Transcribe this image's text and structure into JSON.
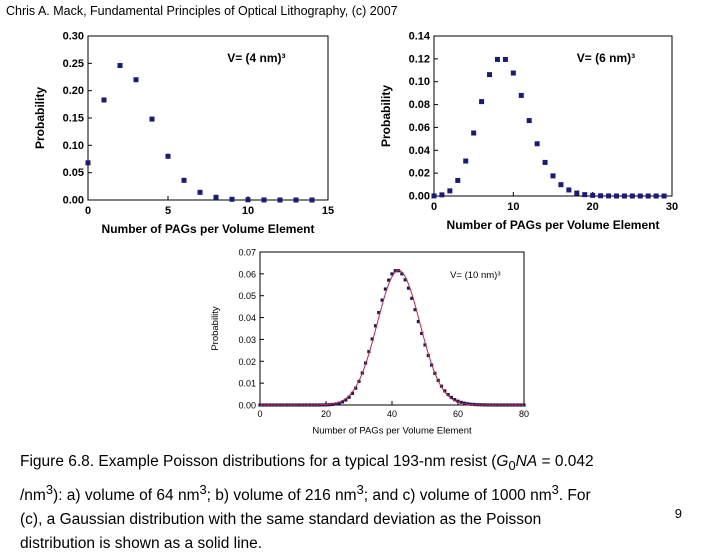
{
  "header": {
    "text": "Chris A. Mack, Fundamental Principles of Optical Lithography, (c) 2007"
  },
  "chart_data": [
    {
      "type": "scatter",
      "title": "V= (4 nm)³",
      "xlabel": "Number of PAGs per Volume Element",
      "ylabel": "Probability",
      "xlim": [
        0,
        15
      ],
      "ylim": [
        0,
        0.3
      ],
      "xticks": [
        "0",
        "5",
        "10",
        "15"
      ],
      "yticks": [
        "0.00",
        "0.05",
        "0.10",
        "0.15",
        "0.20",
        "0.25",
        "0.30"
      ],
      "x": [
        0,
        1,
        2,
        3,
        4,
        5,
        6,
        7,
        8,
        9,
        10,
        11,
        12,
        13,
        14
      ],
      "y": [
        0.068,
        0.183,
        0.246,
        0.22,
        0.148,
        0.08,
        0.036,
        0.014,
        0.005,
        0.0014,
        0.0004,
        0.0001,
        0.0,
        0.0,
        0.0
      ],
      "marker_color": "#1a1a7a"
    },
    {
      "type": "scatter",
      "title": "V= (6 nm)³",
      "xlabel": "Number of PAGs per Volume Element",
      "ylabel": "Probability",
      "xlim": [
        0,
        30
      ],
      "ylim": [
        0,
        0.14
      ],
      "xticks": [
        "0",
        "10",
        "20",
        "30"
      ],
      "yticks": [
        "0.00",
        "0.02",
        "0.04",
        "0.06",
        "0.08",
        "0.10",
        "0.12",
        "0.14"
      ],
      "x": [
        0,
        1,
        2,
        3,
        4,
        5,
        6,
        7,
        8,
        9,
        10,
        11,
        12,
        13,
        14,
        15,
        16,
        17,
        18,
        19,
        20,
        21,
        22,
        23,
        24,
        25,
        26,
        27,
        28,
        29
      ],
      "y": [
        0.0001,
        0.001,
        0.0045,
        0.0136,
        0.0306,
        0.0551,
        0.0826,
        0.1062,
        0.1195,
        0.1195,
        0.1076,
        0.088,
        0.066,
        0.0457,
        0.0294,
        0.0176,
        0.0099,
        0.0053,
        0.0026,
        0.0012,
        0.0006,
        0.0002,
        0.0001,
        0.0,
        0.0,
        0.0,
        0.0,
        0.0,
        0.0,
        0.0
      ],
      "marker_color": "#1a1a7a"
    },
    {
      "type": "scatter",
      "title": "V= (10 nm)³",
      "xlabel": "Number of PAGs per Volume Element",
      "ylabel": "Probability",
      "xlim": [
        0,
        80
      ],
      "ylim": [
        0,
        0.07
      ],
      "xticks": [
        "0",
        "20",
        "40",
        "60",
        "80"
      ],
      "yticks": [
        "0.00",
        "0.01",
        "0.02",
        "0.03",
        "0.04",
        "0.05",
        "0.06",
        "0.07"
      ],
      "poisson_mean": 42,
      "x_range": [
        0,
        80
      ],
      "gaussian_line_color": "#cc2244",
      "marker_color": "#1a1a5a"
    }
  ],
  "caption": {
    "line1": "Figure 6.8.  Example Poisson distributions for a typical 193-nm resist (G",
    "line1_sub": "0",
    "line1_b": "NA = 0.042",
    "line2": "/nm3):  a) volume of 64 nm3; b) volume of 216 nm3; and c) volume of 1000 nm3.  For",
    "line3": "(c), a Gaussian distribution with the same standard deviation as the Poisson",
    "line4": "distribution is shown as a solid line."
  },
  "page_number": "9"
}
